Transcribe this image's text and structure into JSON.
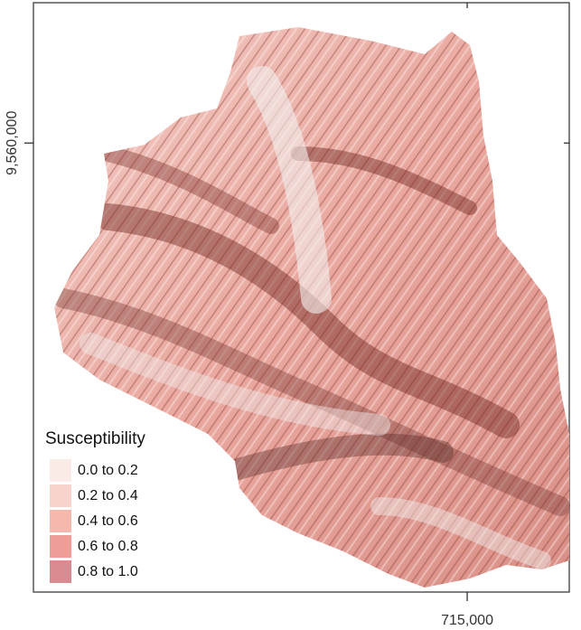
{
  "map": {
    "xlim": [
      706500,
      717000
    ],
    "ylim": [
      9551200,
      9562750
    ],
    "xticks": [
      {
        "value": 715000,
        "label": "715,000"
      }
    ],
    "yticks": [
      {
        "value": 9560000,
        "label": "9,560,000"
      }
    ],
    "legend": {
      "title": "Susceptibility",
      "items": [
        {
          "label": "0.0 to 0.2",
          "color": "#fbebe7"
        },
        {
          "label": "0.2 to 0.4",
          "color": "#f8d3cb"
        },
        {
          "label": "0.4 to 0.6",
          "color": "#f4b8ac"
        },
        {
          "label": "0.6 to 0.8",
          "color": "#ee9d97"
        },
        {
          "label": "0.8 to 1.0",
          "color": "#d98b92"
        }
      ]
    }
  }
}
